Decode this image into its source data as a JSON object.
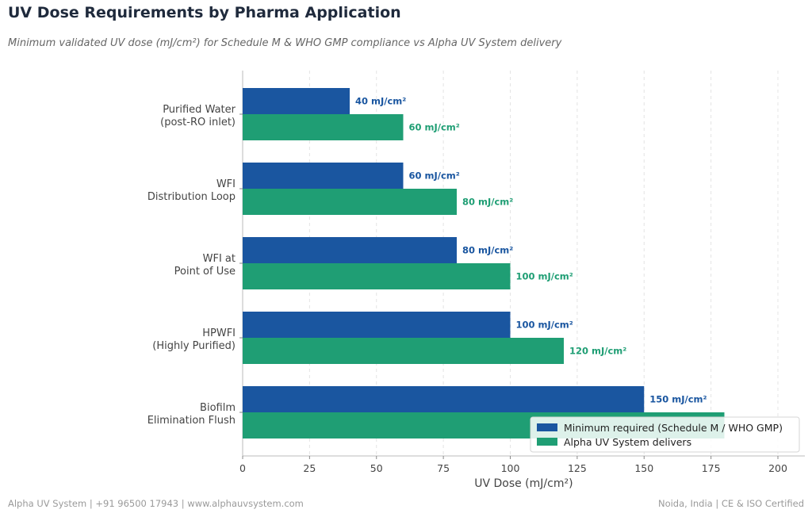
{
  "header": {
    "title": "UV Dose Requirements by Pharma Application",
    "subtitle": "Minimum validated UV dose (mJ/cm²) for Schedule M & WHO GMP compliance vs Alpha UV System delivery"
  },
  "footer": {
    "left": "Alpha UV System  |  +91 96500 17943  |  www.alphauvsystem.com",
    "right": "Noida, India  |  CE & ISO Certified"
  },
  "colors": {
    "minimum": "#1a56a0",
    "alpha": "#1f9e74"
  },
  "chart_data": {
    "type": "bar",
    "orientation": "horizontal",
    "categories": [
      [
        "Purified Water",
        "(post-RO inlet)"
      ],
      [
        "WFI",
        "Distribution Loop"
      ],
      [
        "WFI at",
        "Point of Use"
      ],
      [
        "HPWFI",
        "(Highly Purified)"
      ],
      [
        "Biofilm",
        "Elimination Flush"
      ]
    ],
    "series": [
      {
        "name": "Minimum required (Schedule M / WHO GMP)",
        "values": [
          40,
          60,
          80,
          100,
          150
        ],
        "labels": [
          "40 mJ/cm²",
          "60 mJ/cm²",
          "80 mJ/cm²",
          "100 mJ/cm²",
          "150 mJ/cm²"
        ]
      },
      {
        "name": "Alpha UV System delivers",
        "values": [
          60,
          80,
          100,
          120,
          180
        ],
        "labels": [
          "60 mJ/cm²",
          "80 mJ/cm²",
          "100 mJ/cm²",
          "120 mJ/cm²",
          ""
        ]
      }
    ],
    "xlabel": "UV Dose (mJ/cm²)",
    "xlim": [
      0,
      210
    ],
    "xticks": [
      0,
      25,
      50,
      75,
      100,
      125,
      150,
      175,
      200
    ],
    "grid": "x-dashed",
    "legend": "bottom-right"
  }
}
